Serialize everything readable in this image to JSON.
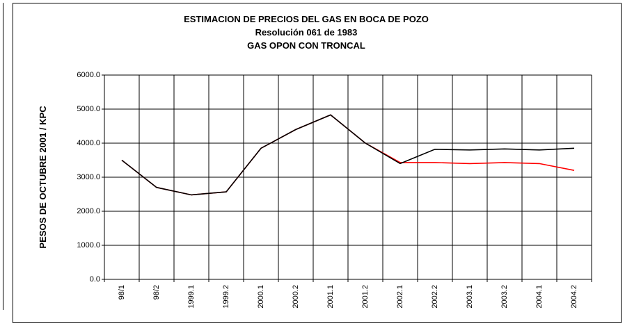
{
  "chart_data": {
    "type": "line",
    "title": "ESTIMACION DE PRECIOS DEL GAS EN BOCA DE POZO",
    "subtitle": [
      "Resolución 061 de 1983",
      "GAS OPON CON TRONCAL"
    ],
    "y_label": "PESOS DE OCTUBRE 2001 / KPC",
    "categories": [
      "98/1",
      "98/2",
      "1999.1",
      "1999.2",
      "2000.1",
      "2000.2",
      "2001.1",
      "2001.2",
      "2002.1",
      "2002.2",
      "2003.1",
      "2003.2",
      "2004.1",
      "2004.2"
    ],
    "series": [
      {
        "color": "#ff0000",
        "values": [
          3500,
          2700,
          2480,
          2570,
          3850,
          4400,
          4830,
          4000,
          3430,
          3430,
          3400,
          3430,
          3400,
          3200
        ]
      },
      {
        "color": "#000000",
        "values": [
          3500,
          2700,
          2480,
          2570,
          3850,
          4400,
          4830,
          4000,
          3400,
          3820,
          3800,
          3830,
          3800,
          3850
        ]
      }
    ],
    "ylim": [
      0,
      6000
    ],
    "yticks": [
      {
        "value": 0,
        "label": "0.0"
      },
      {
        "value": 1000,
        "label": "1000.0"
      },
      {
        "value": 2000,
        "label": "2000.0"
      },
      {
        "value": 3000,
        "label": "3000.0"
      },
      {
        "value": 4000,
        "label": "4000.0"
      },
      {
        "value": 5000,
        "label": "5000.0"
      },
      {
        "value": 6000,
        "label": "6000.0"
      }
    ],
    "grid": true
  }
}
